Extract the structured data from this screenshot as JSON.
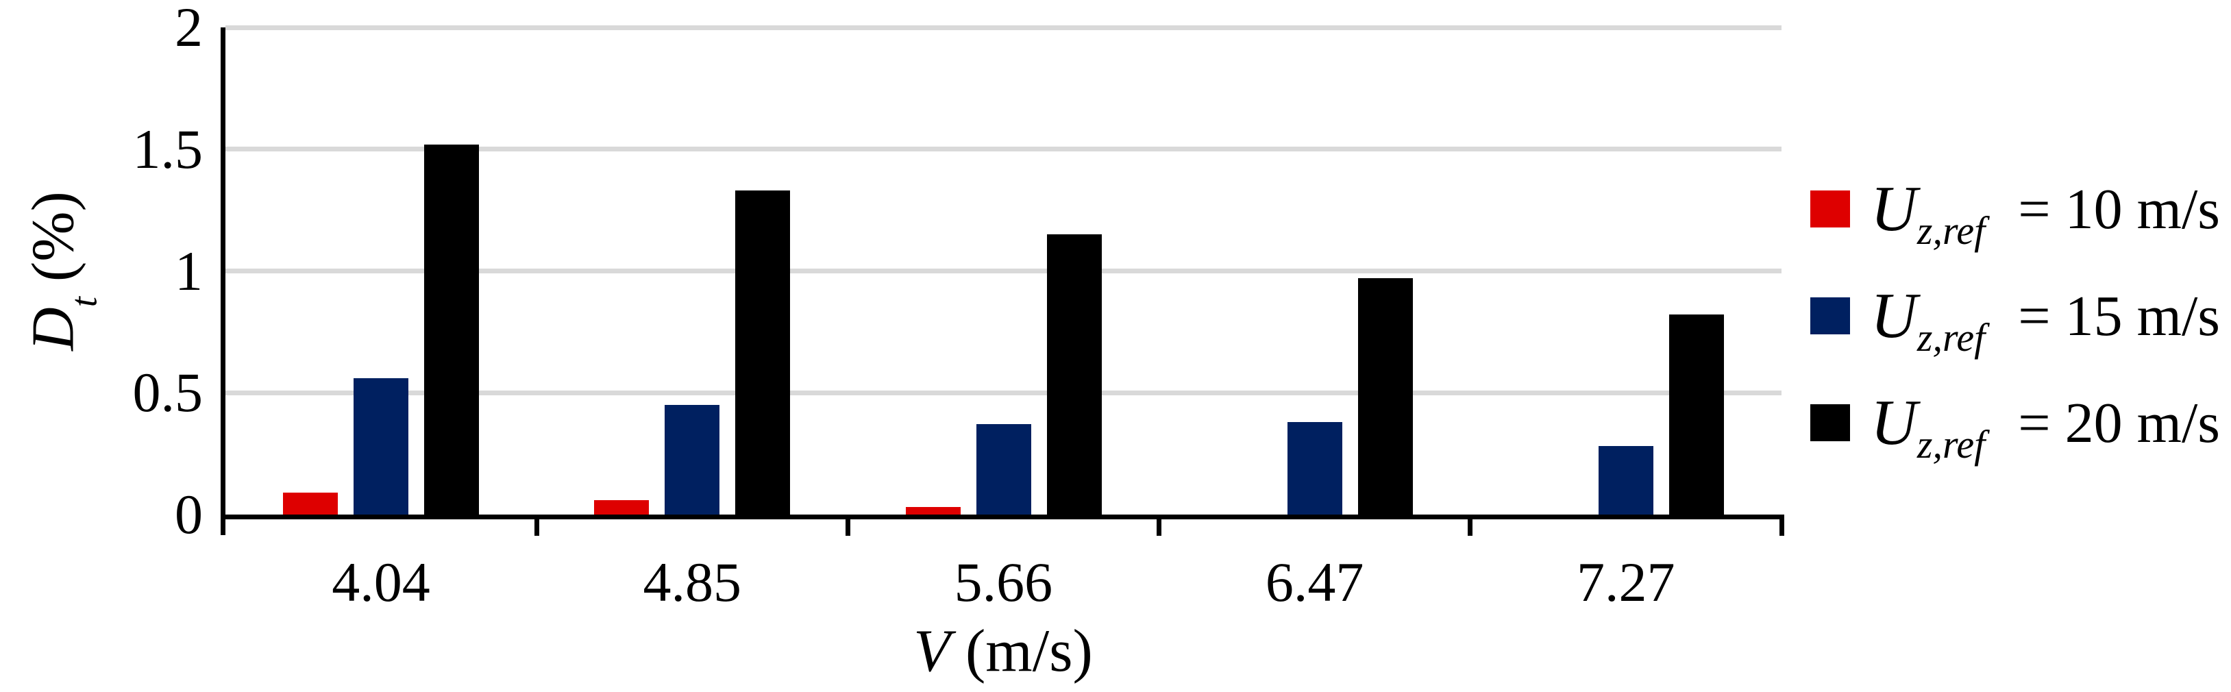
{
  "chart_data": {
    "type": "bar",
    "title": "",
    "categories": [
      "4.04",
      "4.85",
      "5.66",
      "6.47",
      "7.27"
    ],
    "series": [
      {
        "name": "Uz,ref = 10 m/s",
        "color": "#de0000",
        "values": [
          0.09,
          0.06,
          0.03,
          0,
          0
        ]
      },
      {
        "name": "Uz,ref = 15 m/s",
        "color": "#002060",
        "values": [
          0.56,
          0.45,
          0.37,
          0.38,
          0.28
        ]
      },
      {
        "name": "Uz,ref = 20 m/s",
        "color": "#000000",
        "values": [
          1.52,
          1.33,
          1.15,
          0.97,
          0.82
        ]
      }
    ],
    "xlabel": "V (m/s)",
    "ylabel": "Dt (%)",
    "ylim": [
      0,
      2
    ],
    "y_ticks": [
      0,
      0.5,
      1,
      1.5,
      2
    ],
    "grid": "horizontal-gray",
    "gridline_color": "#d9d9d9",
    "legend_position": "right"
  },
  "axes": {
    "y_title": {
      "main": "D",
      "sub": "t",
      "unit": " (%)"
    },
    "x_title": {
      "main": "V",
      "unit": " (m/s)"
    },
    "y_tick_labels": [
      "2",
      "1.5",
      "1",
      "0.5",
      "0"
    ]
  },
  "legend": {
    "items": [
      {
        "symbol": "U",
        "subscript": "z,ref",
        "eq": "= 10 m/s",
        "color": "#de0000"
      },
      {
        "symbol": "U",
        "subscript": "z,ref",
        "eq": "= 15 m/s",
        "color": "#002060"
      },
      {
        "symbol": "U",
        "subscript": "z,ref",
        "eq": "= 20 m/s",
        "color": "#000000"
      }
    ]
  }
}
